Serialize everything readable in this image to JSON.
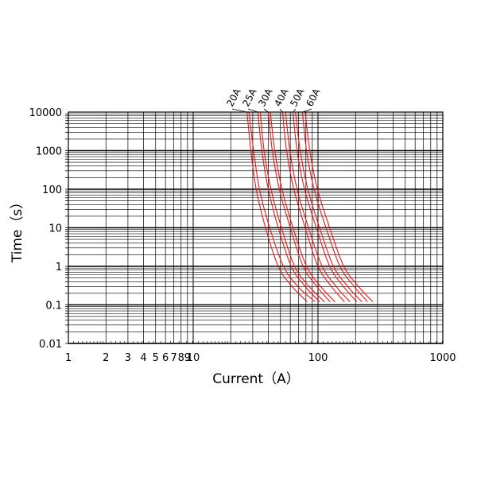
{
  "chart_data": {
    "type": "line",
    "title": "",
    "xlabel": "Current（A）",
    "ylabel": "Time（s）",
    "x_scale": "log",
    "y_scale": "log",
    "xlim": [
      1,
      1000
    ],
    "ylim": [
      0.01,
      10000
    ],
    "grid": true,
    "x_tick_labels": [
      "1",
      "2",
      "3",
      "4",
      "5",
      "6",
      "7",
      "8",
      "9",
      "10",
      "100",
      "1000"
    ],
    "y_tick_labels": [
      "10000",
      "1000",
      "100",
      "10",
      "1",
      "0.1",
      "0.01"
    ],
    "series_color": "#e31a1c",
    "series": [
      {
        "name": "20A",
        "bands": [
          {
            "x": [
              27,
              29,
              32,
              38,
              48,
              62,
              82
            ],
            "y": [
              10000,
              1000,
              100,
              10,
              1,
              0.3,
              0.12
            ]
          },
          {
            "x": [
              28,
              30.5,
              34,
              41,
              53,
              69,
              95
            ],
            "y": [
              10000,
              1000,
              100,
              10,
              1,
              0.3,
              0.12
            ]
          }
        ]
      },
      {
        "name": "25A",
        "bands": [
          {
            "x": [
              33,
              35.5,
              40,
              48,
              61,
              79,
              103
            ],
            "y": [
              10000,
              1000,
              100,
              10,
              1,
              0.3,
              0.12
            ]
          },
          {
            "x": [
              34.5,
              37,
              42,
              51,
              65,
              85,
              113
            ],
            "y": [
              10000,
              1000,
              100,
              10,
              1,
              0.3,
              0.12
            ]
          }
        ]
      },
      {
        "name": "30A",
        "bands": [
          {
            "x": [
              40,
              43,
              49,
              60,
              76,
              98,
              125
            ],
            "y": [
              10000,
              1000,
              100,
              10,
              1,
              0.3,
              0.12
            ]
          },
          {
            "x": [
              41.5,
              45,
              51.5,
              63,
              81,
              105,
              137
            ],
            "y": [
              10000,
              1000,
              100,
              10,
              1,
              0.3,
              0.12
            ]
          }
        ]
      },
      {
        "name": "40A",
        "bands": [
          {
            "x": [
              52,
              56,
              64,
              79,
              100,
              128,
              163
            ],
            "y": [
              10000,
              1000,
              100,
              10,
              1,
              0.3,
              0.12
            ]
          },
          {
            "x": [
              55,
              59.5,
              68,
              84,
              108,
              140,
              180
            ],
            "y": [
              10000,
              1000,
              100,
              10,
              1,
              0.3,
              0.12
            ]
          }
        ]
      },
      {
        "name": "50A",
        "bands": [
          {
            "x": [
              63,
              68,
              78,
              97,
              124,
              160,
              205
            ],
            "y": [
              10000,
              1000,
              100,
              10,
              1,
              0.3,
              0.12
            ]
          },
          {
            "x": [
              66,
              72,
              83,
              103,
              133,
              173,
              225
            ],
            "y": [
              10000,
              1000,
              100,
              10,
              1,
              0.3,
              0.12
            ]
          }
        ]
      },
      {
        "name": "60A",
        "bands": [
          {
            "x": [
              75,
              81,
              93,
              116,
              150,
              195,
              250
            ],
            "y": [
              10000,
              1000,
              100,
              10,
              1,
              0.3,
              0.12
            ]
          },
          {
            "x": [
              79,
              86,
              99,
              124,
              161,
              211,
              275
            ],
            "y": [
              10000,
              1000,
              100,
              10,
              1,
              0.3,
              0.12
            ]
          }
        ]
      }
    ]
  }
}
